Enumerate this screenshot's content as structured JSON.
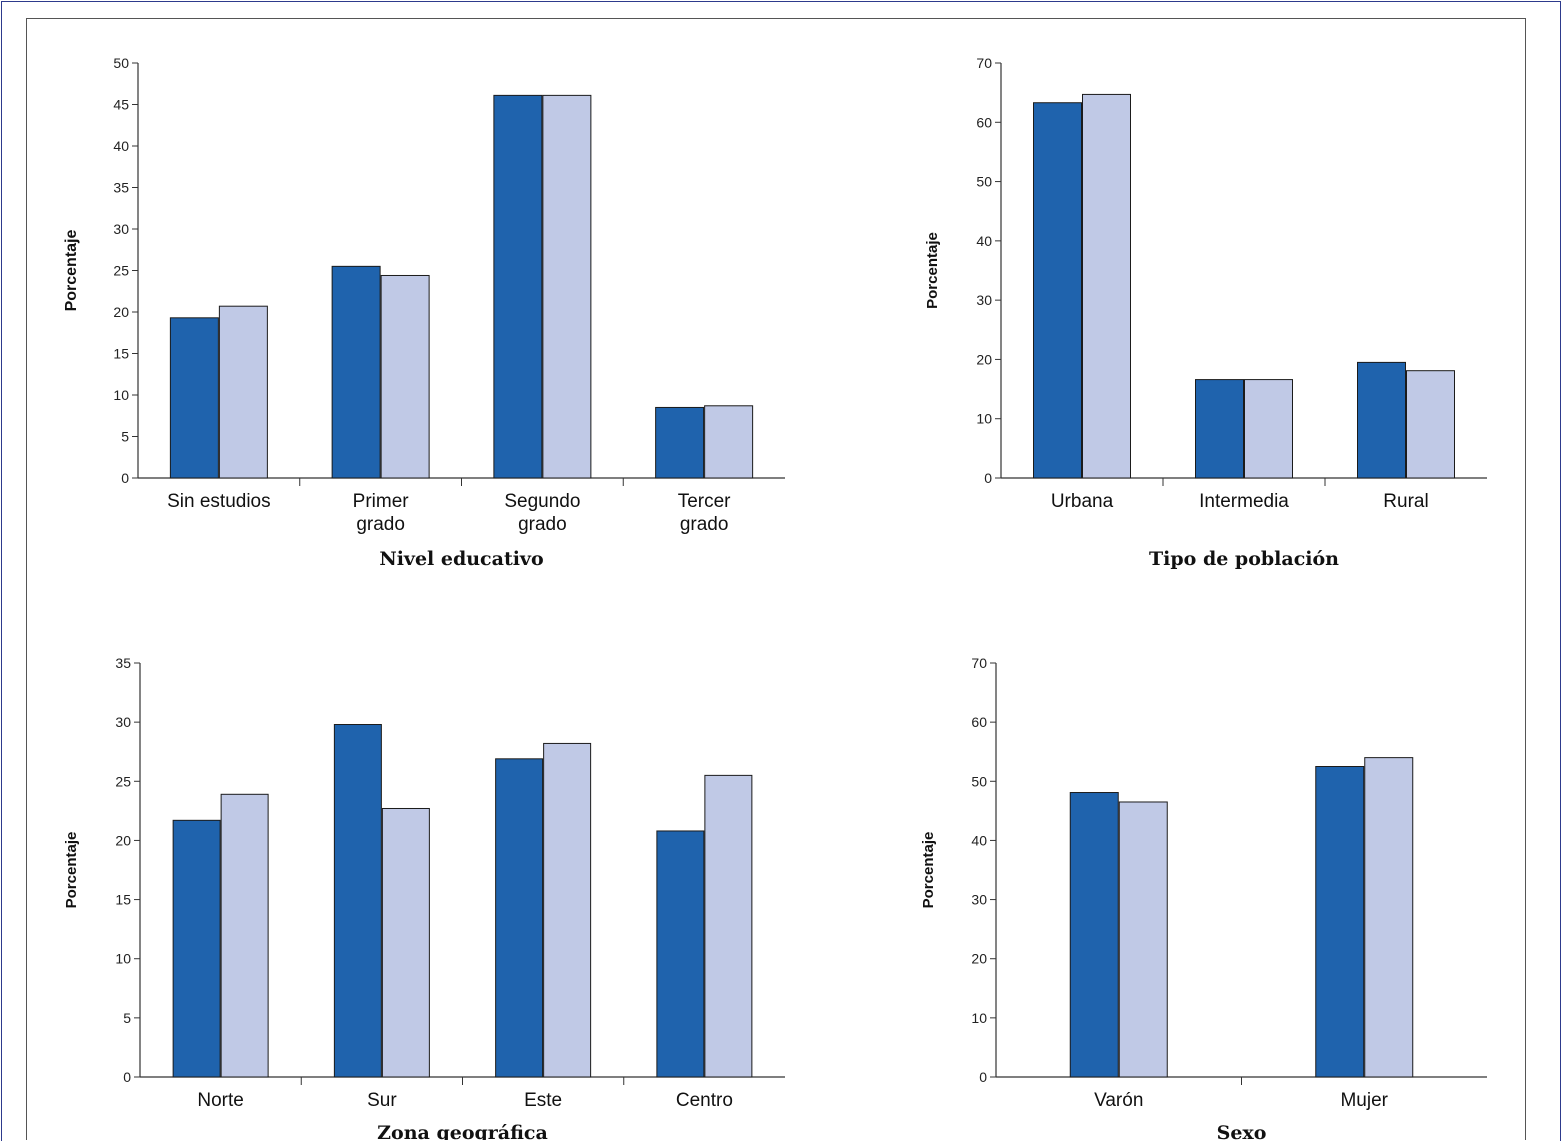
{
  "colors": {
    "series1": "#1f63ad",
    "series2": "#c0c9e6",
    "frame": "#2d3a8c"
  },
  "chart_data": [
    {
      "type": "bar",
      "categories": [
        [
          "Sin estudios"
        ],
        [
          "Primer",
          "grado"
        ],
        [
          "Segundo",
          "grado"
        ],
        [
          "Tercer",
          "grado"
        ]
      ],
      "series": [
        {
          "values": [
            19.3,
            25.5,
            46.1,
            8.5
          ]
        },
        {
          "values": [
            20.7,
            24.4,
            46.1,
            8.7
          ]
        }
      ],
      "xlabel": "Nivel educativo",
      "ylabel": "Porcentaje",
      "ylim": [
        0,
        50
      ],
      "yticks": [
        0,
        5,
        10,
        15,
        20,
        25,
        30,
        35,
        40,
        45,
        50
      ],
      "grid": false
    },
    {
      "type": "bar",
      "categories": [
        [
          "Urbana"
        ],
        [
          "Intermedia"
        ],
        [
          "Rural"
        ]
      ],
      "series": [
        {
          "values": [
            63.3,
            16.6,
            19.5
          ]
        },
        {
          "values": [
            64.7,
            16.6,
            18.1
          ]
        }
      ],
      "xlabel": "Tipo de población",
      "ylabel": "Porcentaje",
      "ylim": [
        0,
        70
      ],
      "yticks": [
        0,
        10,
        20,
        30,
        40,
        50,
        60,
        70
      ],
      "grid": false
    },
    {
      "type": "bar",
      "categories": [
        [
          "Norte"
        ],
        [
          "Sur"
        ],
        [
          "Este"
        ],
        [
          "Centro"
        ]
      ],
      "series": [
        {
          "values": [
            21.7,
            29.8,
            26.9,
            20.8
          ]
        },
        {
          "values": [
            23.9,
            22.7,
            28.2,
            25.5
          ]
        }
      ],
      "xlabel": "Zona geográfica",
      "ylabel": "Porcentaje",
      "ylim": [
        0,
        35
      ],
      "yticks": [
        0,
        5,
        10,
        15,
        20,
        25,
        30,
        35
      ],
      "grid": false
    },
    {
      "type": "bar",
      "categories": [
        [
          "Varón"
        ],
        [
          "Mujer"
        ]
      ],
      "series": [
        {
          "values": [
            48.1,
            52.5
          ]
        },
        {
          "values": [
            46.5,
            54.0
          ]
        }
      ],
      "xlabel": "Sexo",
      "ylabel": "Porcentaje",
      "ylim": [
        0,
        70
      ],
      "yticks": [
        0,
        10,
        20,
        30,
        40,
        50,
        60,
        70
      ],
      "grid": false
    }
  ]
}
